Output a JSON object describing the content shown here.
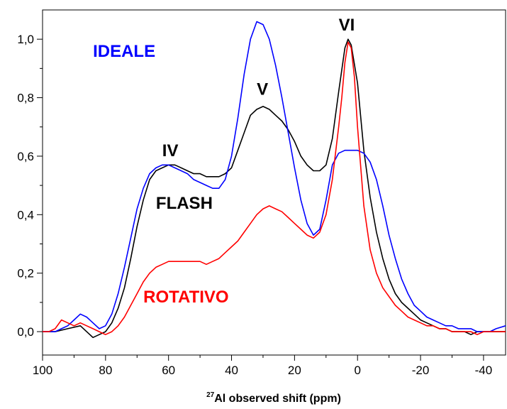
{
  "chart_data": {
    "type": "line",
    "title": "",
    "xlabel_sup": "27",
    "xlabel": "Al observed shift (ppm)",
    "ylabel": "",
    "xlim": [
      100,
      -47
    ],
    "ylim": [
      -0.08,
      1.1
    ],
    "x_reversed": true,
    "grid": false,
    "legend": "none",
    "x_ticks": [
      100,
      80,
      60,
      40,
      20,
      0,
      -20,
      -40
    ],
    "x_tick_labels": [
      "100",
      "80",
      "60",
      "40",
      "20",
      "0",
      "-20",
      "-40"
    ],
    "y_ticks": [
      0,
      0.2,
      0.4,
      0.6,
      0.8,
      1.0
    ],
    "y_tick_labels": [
      "0,0",
      "0,2",
      "0,4",
      "0,6",
      "0,8",
      "1,0"
    ],
    "series": [
      {
        "name": "FLASH",
        "color": "#000000",
        "x": [
          100,
          96,
          92,
          88,
          84,
          82,
          80,
          78,
          76,
          74,
          72,
          70,
          68,
          66,
          64,
          62,
          60,
          58,
          56,
          54,
          52,
          50,
          48,
          46,
          44,
          42,
          40,
          38,
          36,
          34,
          32,
          30,
          28,
          26,
          24,
          22,
          20,
          18,
          16,
          14,
          12,
          10,
          8,
          6,
          4,
          3,
          2,
          0,
          -2,
          -4,
          -6,
          -8,
          -10,
          -12,
          -14,
          -16,
          -18,
          -20,
          -22,
          -24,
          -26,
          -28,
          -30,
          -32,
          -34,
          -36,
          -38,
          -40,
          -42,
          -44,
          -47
        ],
        "y": [
          0.0,
          0.0,
          0.01,
          0.02,
          -0.02,
          -0.01,
          0.0,
          0.03,
          0.08,
          0.15,
          0.25,
          0.36,
          0.45,
          0.52,
          0.55,
          0.56,
          0.57,
          0.57,
          0.56,
          0.55,
          0.54,
          0.54,
          0.53,
          0.53,
          0.53,
          0.54,
          0.56,
          0.62,
          0.68,
          0.74,
          0.76,
          0.77,
          0.76,
          0.74,
          0.72,
          0.69,
          0.65,
          0.6,
          0.57,
          0.55,
          0.55,
          0.57,
          0.66,
          0.82,
          0.97,
          1.0,
          0.98,
          0.85,
          0.62,
          0.46,
          0.34,
          0.25,
          0.18,
          0.13,
          0.1,
          0.08,
          0.06,
          0.04,
          0.03,
          0.02,
          0.01,
          0.01,
          0.0,
          0.0,
          0.0,
          -0.01,
          0.0,
          0.0,
          0.0,
          0.0,
          0.0
        ]
      },
      {
        "name": "IDEALE",
        "color": "#0000ff",
        "x": [
          100,
          96,
          94,
          92,
          90,
          88,
          86,
          84,
          82,
          80,
          78,
          76,
          74,
          72,
          70,
          68,
          66,
          64,
          62,
          60,
          58,
          56,
          54,
          52,
          50,
          48,
          46,
          44,
          42,
          40,
          38,
          36,
          34,
          32,
          30,
          28,
          26,
          24,
          22,
          20,
          18,
          16,
          14,
          12,
          10,
          8,
          6,
          4,
          2,
          0,
          -2,
          -4,
          -6,
          -8,
          -10,
          -12,
          -14,
          -16,
          -18,
          -20,
          -22,
          -24,
          -26,
          -28,
          -30,
          -32,
          -34,
          -36,
          -38,
          -40,
          -42,
          -44,
          -47
        ],
        "y": [
          0.0,
          0.0,
          0.01,
          0.02,
          0.04,
          0.06,
          0.05,
          0.03,
          0.01,
          0.02,
          0.06,
          0.13,
          0.22,
          0.32,
          0.42,
          0.49,
          0.54,
          0.56,
          0.57,
          0.57,
          0.56,
          0.55,
          0.54,
          0.52,
          0.51,
          0.5,
          0.49,
          0.49,
          0.52,
          0.6,
          0.73,
          0.88,
          1.0,
          1.06,
          1.05,
          1.0,
          0.91,
          0.8,
          0.68,
          0.56,
          0.45,
          0.37,
          0.33,
          0.35,
          0.45,
          0.57,
          0.61,
          0.62,
          0.62,
          0.62,
          0.61,
          0.58,
          0.52,
          0.43,
          0.33,
          0.25,
          0.18,
          0.13,
          0.09,
          0.07,
          0.05,
          0.04,
          0.03,
          0.02,
          0.02,
          0.01,
          0.01,
          0.01,
          0.0,
          0.0,
          0.0,
          0.01,
          0.02
        ]
      },
      {
        "name": "ROTATIVO",
        "color": "#ff0000",
        "x": [
          100,
          98,
          96,
          94,
          92,
          90,
          88,
          86,
          84,
          82,
          80,
          78,
          76,
          74,
          72,
          70,
          68,
          66,
          64,
          62,
          60,
          58,
          56,
          54,
          52,
          50,
          48,
          46,
          44,
          42,
          40,
          38,
          36,
          34,
          32,
          30,
          28,
          26,
          24,
          22,
          20,
          18,
          16,
          14,
          12,
          10,
          8,
          6,
          5,
          4,
          3,
          2,
          1,
          0,
          -2,
          -4,
          -6,
          -8,
          -10,
          -12,
          -14,
          -16,
          -18,
          -20,
          -22,
          -24,
          -26,
          -28,
          -30,
          -32,
          -34,
          -36,
          -38,
          -40,
          -42,
          -44,
          -47
        ],
        "y": [
          0.0,
          0.0,
          0.01,
          0.04,
          0.03,
          0.02,
          0.03,
          0.02,
          0.01,
          0.0,
          -0.01,
          0.0,
          0.02,
          0.05,
          0.09,
          0.13,
          0.17,
          0.2,
          0.22,
          0.23,
          0.24,
          0.24,
          0.24,
          0.24,
          0.24,
          0.24,
          0.23,
          0.24,
          0.25,
          0.27,
          0.29,
          0.31,
          0.34,
          0.37,
          0.4,
          0.42,
          0.43,
          0.42,
          0.41,
          0.39,
          0.37,
          0.35,
          0.33,
          0.32,
          0.34,
          0.4,
          0.52,
          0.7,
          0.8,
          0.92,
          0.99,
          0.97,
          0.87,
          0.7,
          0.43,
          0.28,
          0.2,
          0.15,
          0.12,
          0.09,
          0.07,
          0.05,
          0.04,
          0.03,
          0.02,
          0.02,
          0.01,
          0.01,
          0.0,
          0.0,
          0.0,
          0.0,
          -0.01,
          0.0,
          0.0,
          0.0,
          0.0
        ]
      }
    ],
    "annotations": [
      {
        "id": "ideale",
        "text": "IDEALE",
        "color": "#0000ff",
        "x": 84,
        "y": 0.94
      },
      {
        "id": "v",
        "text": "V",
        "color": "#000000",
        "x": 32,
        "y": 0.81
      },
      {
        "id": "vi",
        "text": "VI",
        "color": "#000000",
        "x": 6,
        "y": 1.03
      },
      {
        "id": "iv",
        "text": "IV",
        "color": "#000000",
        "x": 62,
        "y": 0.6
      },
      {
        "id": "flash",
        "text": "FLASH",
        "color": "#000000",
        "x": 64,
        "y": 0.42
      },
      {
        "id": "rotativo",
        "text": "ROTATIVO",
        "color": "#ff0000",
        "x": 68,
        "y": 0.1
      }
    ]
  }
}
